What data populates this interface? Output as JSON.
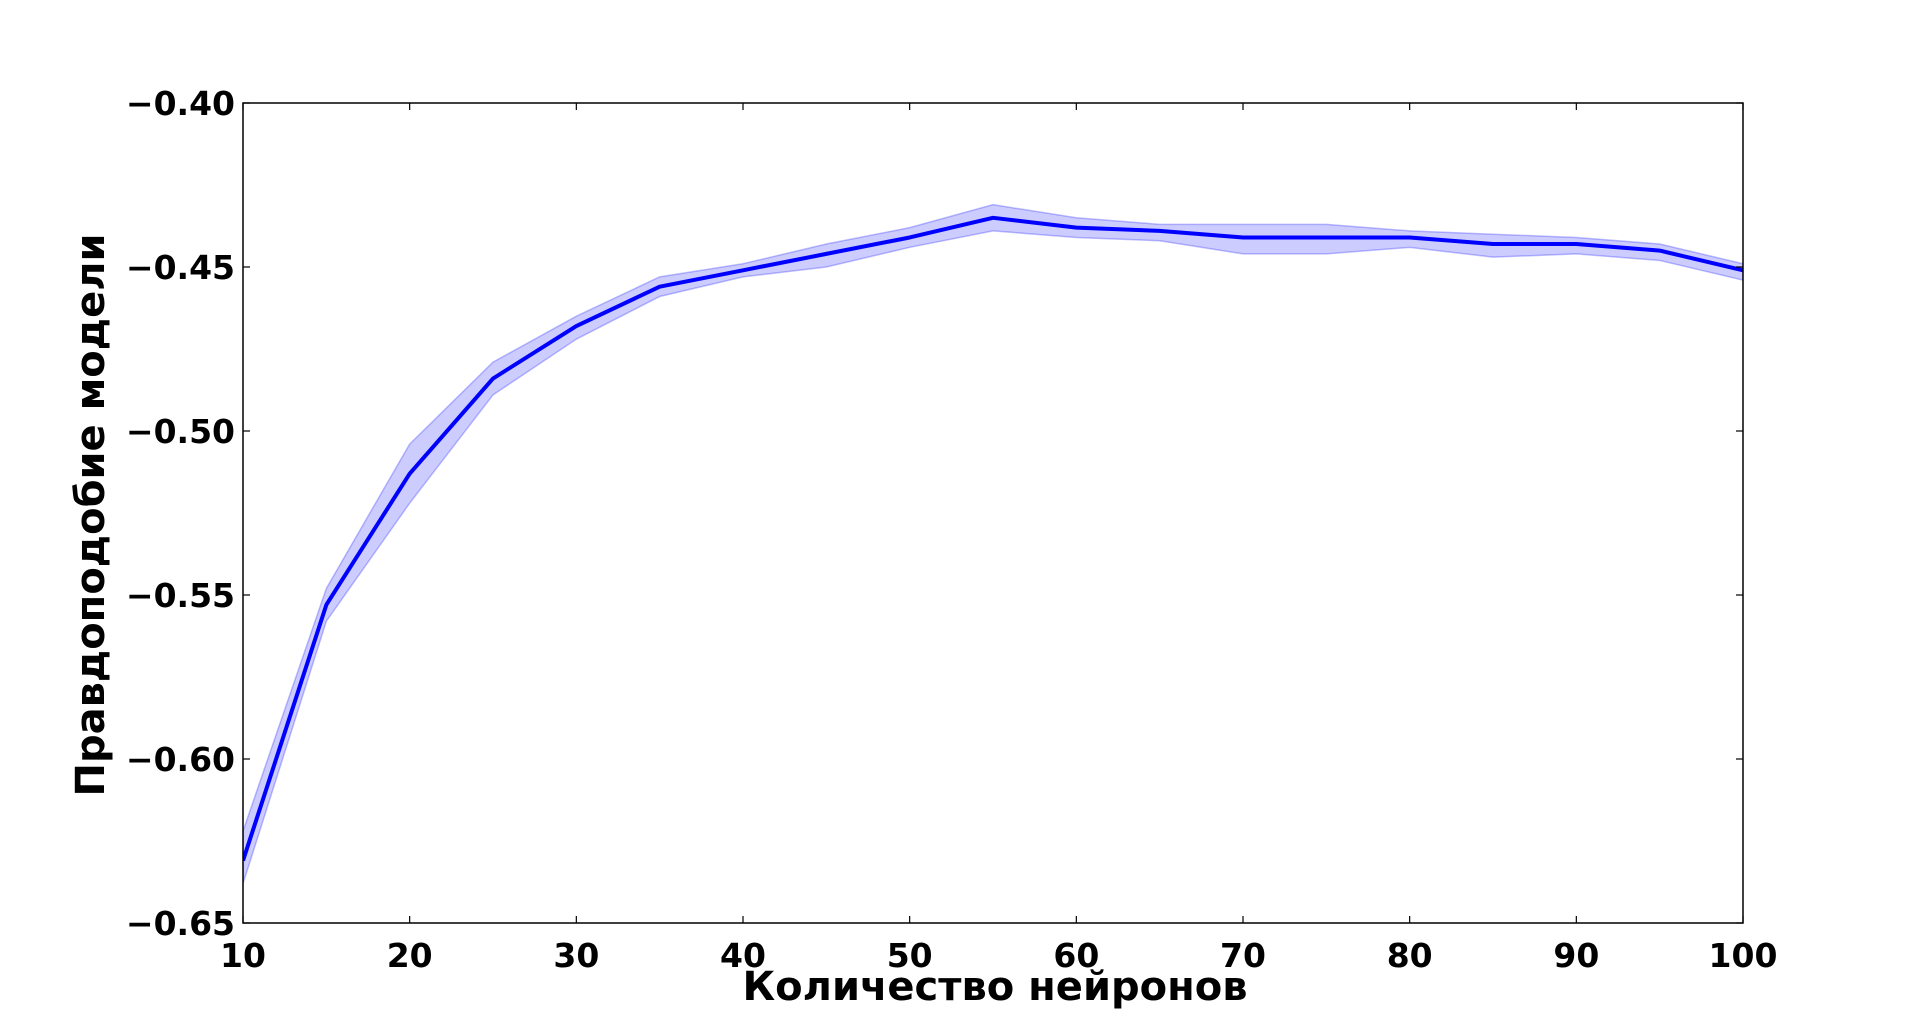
{
  "chart_data": {
    "type": "line",
    "title": "",
    "xlabel": "Количество нейронов",
    "ylabel": "Правдоподобие модели",
    "xlim": [
      10,
      100
    ],
    "ylim": [
      -0.65,
      -0.4
    ],
    "x_ticks": [
      10,
      20,
      30,
      40,
      50,
      60,
      70,
      80,
      90,
      100
    ],
    "x_tick_labels": [
      "10",
      "20",
      "30",
      "40",
      "50",
      "60",
      "70",
      "80",
      "90",
      "100"
    ],
    "y_ticks": [
      -0.65,
      -0.6,
      -0.55,
      -0.5,
      -0.45,
      -0.4
    ],
    "y_tick_labels": [
      "−0.65",
      "−0.60",
      "−0.55",
      "−0.50",
      "−0.45",
      "−0.40"
    ],
    "grid": false,
    "legend": "none",
    "series": [
      {
        "x": [
          10,
          15,
          20,
          25,
          30,
          35,
          40,
          45,
          50,
          55,
          60,
          65,
          70,
          75,
          80,
          85,
          90,
          95,
          100
        ],
        "values": [
          -0.631,
          -0.553,
          -0.513,
          -0.484,
          -0.468,
          -0.456,
          -0.451,
          -0.446,
          -0.441,
          -0.435,
          -0.438,
          -0.439,
          -0.441,
          -0.441,
          -0.441,
          -0.443,
          -0.443,
          -0.445,
          -0.451
        ],
        "lower": [
          -0.638,
          -0.558,
          -0.522,
          -0.489,
          -0.472,
          -0.459,
          -0.453,
          -0.45,
          -0.444,
          -0.439,
          -0.441,
          -0.442,
          -0.446,
          -0.446,
          -0.444,
          -0.447,
          -0.446,
          -0.448,
          -0.454
        ],
        "upper": [
          -0.622,
          -0.548,
          -0.504,
          -0.479,
          -0.465,
          -0.453,
          -0.449,
          -0.443,
          -0.438,
          -0.431,
          -0.435,
          -0.437,
          -0.437,
          -0.437,
          -0.439,
          -0.44,
          -0.441,
          -0.443,
          -0.449
        ],
        "color": "#0000ff",
        "band_color": "#0000ff"
      }
    ]
  }
}
